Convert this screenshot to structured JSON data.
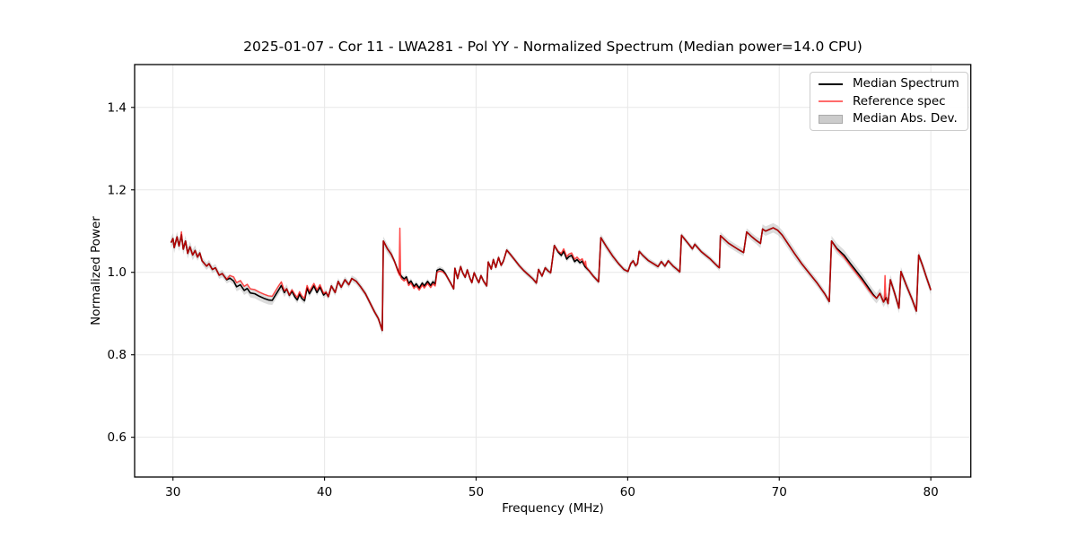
{
  "chart_data": {
    "type": "line",
    "title": "2025-01-07 - Cor 11 - LWA281 - Pol YY - Normalized Spectrum (Median power=14.0 CPU)",
    "xlabel": "Frequency (MHz)",
    "ylabel": "Normalized Power",
    "xlim": [
      27.47,
      82.64
    ],
    "ylim": [
      0.5036,
      1.5039
    ],
    "x_ticks": [
      30,
      40,
      50,
      60,
      70,
      80
    ],
    "y_ticks": [
      0.6,
      0.8,
      1.0,
      1.2,
      1.4
    ],
    "grid": true,
    "legend_position": "upper right",
    "colors": {
      "median_line": "#000000",
      "reference_line": "#ff0000",
      "reference_opacity": 0.7,
      "mad_band": "#bfbfbf",
      "mad_band_opacity": 0.55,
      "grid_line": "#e7e7e7",
      "spine": "#000000"
    },
    "legend": [
      {
        "label": "Median Spectrum",
        "swatch": "line",
        "color": "#000000"
      },
      {
        "label": "Reference spec",
        "swatch": "line",
        "color": "#ff6b6b"
      },
      {
        "label": "Median Abs. Dev.",
        "swatch": "patch",
        "color": "#cccccc"
      }
    ],
    "series": [
      {
        "name": "Median Spectrum",
        "type": "line",
        "color": "#000000",
        "points": [
          [
            29.87,
            1.072
          ],
          [
            30.0,
            1.082
          ],
          [
            30.08,
            1.06
          ],
          [
            30.27,
            1.086
          ],
          [
            30.4,
            1.064
          ],
          [
            30.56,
            1.091
          ],
          [
            30.68,
            1.056
          ],
          [
            30.83,
            1.076
          ],
          [
            30.97,
            1.046
          ],
          [
            31.12,
            1.062
          ],
          [
            31.3,
            1.042
          ],
          [
            31.46,
            1.053
          ],
          [
            31.62,
            1.037
          ],
          [
            31.77,
            1.047
          ],
          [
            31.92,
            1.028
          ],
          [
            32.1,
            1.02
          ],
          [
            32.22,
            1.015
          ],
          [
            32.38,
            1.021
          ],
          [
            32.6,
            1.007
          ],
          [
            32.8,
            1.011
          ],
          [
            33.05,
            0.993
          ],
          [
            33.25,
            0.997
          ],
          [
            33.55,
            0.982
          ],
          [
            33.75,
            0.986
          ],
          [
            34.0,
            0.979
          ],
          [
            34.2,
            0.965
          ],
          [
            34.45,
            0.97
          ],
          [
            34.7,
            0.956
          ],
          [
            34.9,
            0.961
          ],
          [
            35.1,
            0.95
          ],
          [
            35.4,
            0.948
          ],
          [
            35.7,
            0.942
          ],
          [
            36.0,
            0.937
          ],
          [
            36.3,
            0.933
          ],
          [
            36.55,
            0.932
          ],
          [
            36.75,
            0.944
          ],
          [
            36.95,
            0.956
          ],
          [
            37.15,
            0.968
          ],
          [
            37.35,
            0.951
          ],
          [
            37.5,
            0.96
          ],
          [
            37.68,
            0.944
          ],
          [
            37.85,
            0.954
          ],
          [
            38.05,
            0.94
          ],
          [
            38.2,
            0.933
          ],
          [
            38.35,
            0.947
          ],
          [
            38.5,
            0.937
          ],
          [
            38.68,
            0.931
          ],
          [
            38.85,
            0.962
          ],
          [
            39.0,
            0.948
          ],
          [
            39.3,
            0.967
          ],
          [
            39.5,
            0.951
          ],
          [
            39.7,
            0.964
          ],
          [
            39.94,
            0.945
          ],
          [
            40.1,
            0.951
          ],
          [
            40.25,
            0.941
          ],
          [
            40.45,
            0.967
          ],
          [
            40.7,
            0.951
          ],
          [
            40.9,
            0.978
          ],
          [
            41.1,
            0.964
          ],
          [
            41.35,
            0.982
          ],
          [
            41.6,
            0.97
          ],
          [
            41.8,
            0.985
          ],
          [
            42.1,
            0.978
          ],
          [
            42.4,
            0.964
          ],
          [
            42.7,
            0.948
          ],
          [
            43.0,
            0.926
          ],
          [
            43.3,
            0.904
          ],
          [
            43.55,
            0.888
          ],
          [
            43.81,
            0.859
          ],
          [
            43.88,
            1.076
          ],
          [
            44.15,
            1.057
          ],
          [
            44.4,
            1.044
          ],
          [
            44.6,
            1.028
          ],
          [
            44.85,
            1.004
          ],
          [
            44.95,
            0.997
          ],
          [
            45.1,
            0.989
          ],
          [
            45.25,
            0.984
          ],
          [
            45.4,
            0.989
          ],
          [
            45.55,
            0.973
          ],
          [
            45.7,
            0.979
          ],
          [
            45.9,
            0.966
          ],
          [
            46.05,
            0.972
          ],
          [
            46.25,
            0.962
          ],
          [
            46.45,
            0.974
          ],
          [
            46.58,
            0.967
          ],
          [
            46.8,
            0.978
          ],
          [
            47.0,
            0.968
          ],
          [
            47.15,
            0.977
          ],
          [
            47.3,
            0.972
          ],
          [
            47.42,
            1.005
          ],
          [
            47.6,
            1.008
          ],
          [
            47.8,
            1.005
          ],
          [
            47.97,
            0.997
          ],
          [
            48.15,
            0.985
          ],
          [
            48.35,
            0.972
          ],
          [
            48.52,
            0.96
          ],
          [
            48.6,
            1.01
          ],
          [
            48.78,
            0.985
          ],
          [
            48.98,
            1.014
          ],
          [
            49.1,
            1.0
          ],
          [
            49.28,
            0.988
          ],
          [
            49.42,
            1.006
          ],
          [
            49.6,
            0.985
          ],
          [
            49.72,
            0.975
          ],
          [
            49.87,
            0.999
          ],
          [
            50.05,
            0.984
          ],
          [
            50.18,
            0.975
          ],
          [
            50.32,
            0.992
          ],
          [
            50.5,
            0.978
          ],
          [
            50.7,
            0.967
          ],
          [
            50.8,
            1.025
          ],
          [
            51.0,
            1.008
          ],
          [
            51.14,
            1.031
          ],
          [
            51.3,
            1.012
          ],
          [
            51.48,
            1.036
          ],
          [
            51.65,
            1.017
          ],
          [
            51.8,
            1.027
          ],
          [
            52.02,
            1.054
          ],
          [
            52.25,
            1.044
          ],
          [
            52.55,
            1.03
          ],
          [
            52.85,
            1.016
          ],
          [
            53.15,
            1.004
          ],
          [
            53.45,
            0.994
          ],
          [
            53.75,
            0.984
          ],
          [
            53.98,
            0.974
          ],
          [
            54.12,
            1.007
          ],
          [
            54.35,
            0.991
          ],
          [
            54.56,
            1.011
          ],
          [
            54.76,
            1.003
          ],
          [
            54.92,
            0.999
          ],
          [
            55.16,
            1.065
          ],
          [
            55.42,
            1.049
          ],
          [
            55.62,
            1.041
          ],
          [
            55.78,
            1.051
          ],
          [
            55.98,
            1.032
          ],
          [
            56.12,
            1.038
          ],
          [
            56.3,
            1.041
          ],
          [
            56.5,
            1.026
          ],
          [
            56.66,
            1.031
          ],
          [
            56.85,
            1.023
          ],
          [
            57.0,
            1.027
          ],
          [
            57.18,
            1.014
          ],
          [
            57.45,
            1.004
          ],
          [
            57.75,
            0.99
          ],
          [
            58.08,
            0.977
          ],
          [
            58.23,
            1.084
          ],
          [
            58.6,
            1.062
          ],
          [
            59.0,
            1.04
          ],
          [
            59.4,
            1.021
          ],
          [
            59.75,
            1.007
          ],
          [
            60.02,
            1.002
          ],
          [
            60.2,
            1.021
          ],
          [
            60.36,
            1.028
          ],
          [
            60.52,
            1.016
          ],
          [
            60.65,
            1.021
          ],
          [
            60.76,
            1.051
          ],
          [
            61.0,
            1.041
          ],
          [
            61.35,
            1.029
          ],
          [
            61.7,
            1.021
          ],
          [
            62.0,
            1.014
          ],
          [
            62.22,
            1.026
          ],
          [
            62.46,
            1.015
          ],
          [
            62.68,
            1.028
          ],
          [
            63.0,
            1.015
          ],
          [
            63.2,
            1.009
          ],
          [
            63.44,
            1.001
          ],
          [
            63.55,
            1.09
          ],
          [
            63.97,
            1.071
          ],
          [
            64.27,
            1.057
          ],
          [
            64.43,
            1.068
          ],
          [
            64.86,
            1.05
          ],
          [
            65.46,
            1.032
          ],
          [
            65.95,
            1.014
          ],
          [
            66.05,
            1.011
          ],
          [
            66.12,
            1.089
          ],
          [
            66.64,
            1.071
          ],
          [
            67.23,
            1.057
          ],
          [
            67.65,
            1.048
          ],
          [
            67.85,
            1.098
          ],
          [
            68.2,
            1.086
          ],
          [
            68.5,
            1.077
          ],
          [
            68.76,
            1.07
          ],
          [
            68.9,
            1.105
          ],
          [
            69.1,
            1.1
          ],
          [
            69.35,
            1.104
          ],
          [
            69.6,
            1.108
          ],
          [
            69.9,
            1.102
          ],
          [
            70.2,
            1.09
          ],
          [
            70.6,
            1.068
          ],
          [
            71.0,
            1.046
          ],
          [
            71.5,
            1.02
          ],
          [
            72.0,
            0.997
          ],
          [
            72.5,
            0.974
          ],
          [
            73.0,
            0.948
          ],
          [
            73.3,
            0.929
          ],
          [
            73.45,
            1.076
          ],
          [
            73.8,
            1.058
          ],
          [
            74.27,
            1.042
          ],
          [
            74.7,
            1.021
          ],
          [
            75.1,
            1.002
          ],
          [
            75.5,
            0.983
          ],
          [
            75.9,
            0.962
          ],
          [
            76.2,
            0.946
          ],
          [
            76.42,
            0.937
          ],
          [
            76.64,
            0.949
          ],
          [
            76.88,
            0.928
          ],
          [
            77.05,
            0.939
          ],
          [
            77.18,
            0.924
          ],
          [
            77.33,
            0.982
          ],
          [
            77.6,
            0.951
          ],
          [
            77.9,
            0.913
          ],
          [
            78.03,
            1.002
          ],
          [
            78.4,
            0.967
          ],
          [
            78.75,
            0.936
          ],
          [
            79.05,
            0.906
          ],
          [
            79.2,
            1.042
          ],
          [
            79.45,
            1.017
          ],
          [
            79.7,
            0.989
          ],
          [
            80.0,
            0.957
          ]
        ]
      },
      {
        "name": "Reference spec",
        "type": "line",
        "color": "#ff0000",
        "opacity": 0.7,
        "derived_from": "Median Spectrum",
        "offset_ranges": [
          [
            33.5,
            37.5,
            0.01
          ],
          [
            37.6,
            40.2,
            0.006
          ],
          [
            44.6,
            48.1,
            -0.005
          ],
          [
            55.3,
            57.4,
            0.006
          ],
          [
            73.6,
            76.4,
            -0.005
          ]
        ],
        "spikes": [
          [
            30.56,
            1.098
          ],
          [
            44.97,
            1.107
          ],
          [
            57.22,
            1.027
          ],
          [
            76.98,
            0.992
          ]
        ]
      },
      {
        "name": "Median Abs. Dev.",
        "type": "band",
        "color": "#bfbfbf",
        "opacity": 0.55,
        "around": "Median Spectrum",
        "halfwidth_ranges": [
          [
            29.8,
            31.6,
            0.013
          ],
          [
            31.6,
            34.0,
            0.009
          ],
          [
            34.0,
            37.6,
            0.011
          ],
          [
            37.6,
            43.6,
            0.008
          ],
          [
            43.6,
            44.5,
            0.011
          ],
          [
            44.5,
            58.1,
            0.0065
          ],
          [
            58.1,
            59.3,
            0.009
          ],
          [
            59.3,
            66.0,
            0.0065
          ],
          [
            66.0,
            68.6,
            0.009
          ],
          [
            68.6,
            71.4,
            0.0115
          ],
          [
            71.4,
            73.35,
            0.009
          ],
          [
            73.35,
            78.0,
            0.0125
          ],
          [
            78.0,
            80.2,
            0.011
          ]
        ]
      }
    ]
  }
}
